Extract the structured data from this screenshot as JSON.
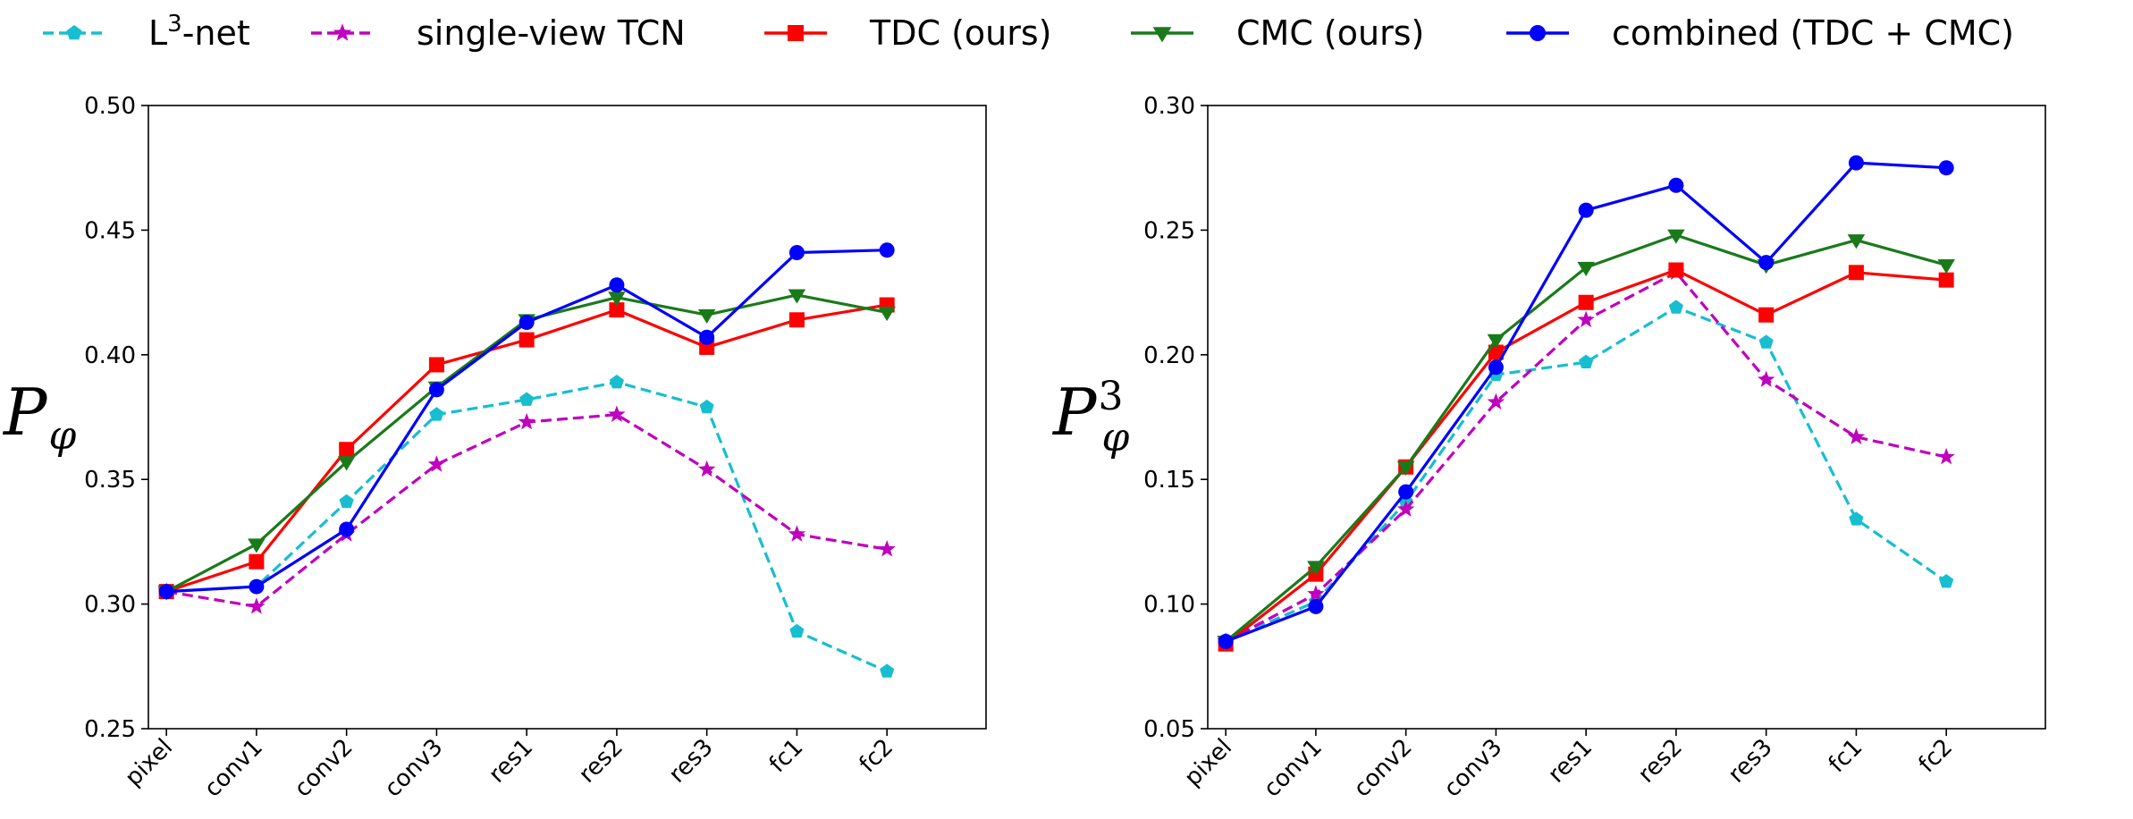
{
  "legend": [
    {
      "name": "L3-net",
      "prefix": "L",
      "sup": "3",
      "suffix": "-net",
      "color": "#17becf",
      "marker": "pentagon",
      "dashed": true
    },
    {
      "name": "single-view TCN",
      "prefix": "single-view TCN",
      "sup": "",
      "suffix": "",
      "color": "#bf00bf",
      "marker": "star",
      "dashed": true
    },
    {
      "name": "TDC (ours)",
      "prefix": "TDC (ours)",
      "sup": "",
      "suffix": "",
      "color": "#ff0000",
      "marker": "square",
      "dashed": false
    },
    {
      "name": "CMC (ours)",
      "prefix": "CMC (ours)",
      "sup": "",
      "suffix": "",
      "color": "#1a7a1a",
      "marker": "triangle-down",
      "dashed": false
    },
    {
      "name": "combined (TDC + CMC)",
      "prefix": "combined (TDC + CMC)",
      "sup": "",
      "suffix": "",
      "color": "#0000ff",
      "marker": "circle",
      "dashed": false
    }
  ],
  "chart_data": [
    {
      "type": "line",
      "ylabel": {
        "main": "P",
        "sub": "φ",
        "sup": ""
      },
      "categories": [
        "pixel",
        "conv1",
        "conv2",
        "conv3",
        "res1",
        "res2",
        "res3",
        "fc1",
        "fc2"
      ],
      "ylim": [
        0.25,
        0.5
      ],
      "yticks": [
        "0.25",
        "0.30",
        "0.35",
        "0.40",
        "0.45",
        "0.50"
      ],
      "grid": false,
      "series": [
        {
          "name": "L3-net",
          "values": [
            0.305,
            0.307,
            0.341,
            0.376,
            0.382,
            0.389,
            0.379,
            0.289,
            0.273
          ]
        },
        {
          "name": "single-view TCN",
          "values": [
            0.305,
            0.299,
            0.328,
            0.356,
            0.373,
            0.376,
            0.354,
            0.328,
            0.322
          ]
        },
        {
          "name": "TDC (ours)",
          "values": [
            0.305,
            0.317,
            0.362,
            0.396,
            0.406,
            0.418,
            0.403,
            0.414,
            0.42
          ]
        },
        {
          "name": "CMC (ours)",
          "values": [
            0.305,
            0.324,
            0.357,
            0.387,
            0.414,
            0.423,
            0.416,
            0.424,
            0.417
          ]
        },
        {
          "name": "combined (TDC + CMC)",
          "values": [
            0.305,
            0.307,
            0.33,
            0.386,
            0.413,
            0.428,
            0.407,
            0.441,
            0.442
          ]
        }
      ]
    },
    {
      "type": "line",
      "ylabel": {
        "main": "P",
        "sub": "φ",
        "sup": "3"
      },
      "categories": [
        "pixel",
        "conv1",
        "conv2",
        "conv3",
        "res1",
        "res2",
        "res3",
        "fc1",
        "fc2"
      ],
      "ylim": [
        0.05,
        0.3
      ],
      "yticks": [
        "0.05",
        "0.10",
        "0.15",
        "0.20",
        "0.25",
        "0.30"
      ],
      "grid": false,
      "series": [
        {
          "name": "L3-net",
          "values": [
            0.085,
            0.101,
            0.141,
            0.192,
            0.197,
            0.219,
            0.205,
            0.134,
            0.109
          ]
        },
        {
          "name": "single-view TCN",
          "values": [
            0.085,
            0.104,
            0.138,
            0.181,
            0.214,
            0.233,
            0.19,
            0.167,
            0.159
          ]
        },
        {
          "name": "TDC (ours)",
          "values": [
            0.084,
            0.112,
            0.155,
            0.201,
            0.221,
            0.234,
            0.216,
            0.233,
            0.23
          ]
        },
        {
          "name": "CMC (ours)",
          "values": [
            0.085,
            0.115,
            0.155,
            0.206,
            0.235,
            0.248,
            0.236,
            0.246,
            0.236
          ]
        },
        {
          "name": "combined (TDC + CMC)",
          "values": [
            0.085,
            0.099,
            0.145,
            0.195,
            0.258,
            0.268,
            0.237,
            0.277,
            0.275
          ]
        }
      ]
    }
  ]
}
